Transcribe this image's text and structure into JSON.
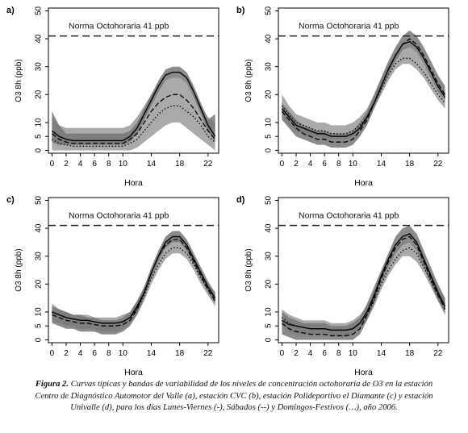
{
  "chart_data": [
    {
      "type": "line",
      "panel_label": "a)",
      "reference_label": "Norma Octohoraria 41 ppb",
      "reference_value": 41,
      "xlabel": "Hora",
      "ylabel": "O3 8h (ppb)",
      "x": [
        0,
        1,
        2,
        3,
        4,
        5,
        6,
        7,
        8,
        9,
        10,
        11,
        12,
        13,
        14,
        15,
        16,
        17,
        18,
        19,
        20,
        21,
        22,
        23
      ],
      "xticks": [
        0,
        2,
        4,
        6,
        8,
        10,
        14,
        18,
        22
      ],
      "yticks": [
        0,
        5,
        10,
        20,
        30,
        40,
        50
      ],
      "xlim": [
        -0.5,
        23.5
      ],
      "ylim": [
        -1,
        51
      ],
      "series": [
        {
          "style": "solid",
          "values": [
            7,
            5,
            4,
            3.5,
            3.5,
            3.5,
            3.5,
            3.5,
            3.5,
            3.5,
            3.5,
            5,
            8,
            13,
            18,
            23,
            27,
            28,
            28,
            26,
            21,
            15,
            9,
            5
          ]
        },
        {
          "style": "dashed",
          "values": [
            6,
            4,
            3,
            2.5,
            2.5,
            2.5,
            2.5,
            2.5,
            2.5,
            2.5,
            2.5,
            4,
            6,
            10,
            14,
            17,
            19,
            20,
            20,
            18,
            15,
            11,
            7,
            4
          ]
        },
        {
          "style": "dotted",
          "values": [
            4,
            2.5,
            2,
            1.5,
            1.5,
            1.5,
            1.5,
            1.5,
            1.5,
            1.5,
            1.5,
            2.5,
            4,
            7,
            10,
            13,
            15,
            16,
            16,
            14,
            12,
            9,
            5,
            3
          ]
        }
      ],
      "bands": [
        {
          "fill": "#aaaaaa",
          "lower": [
            0,
            0,
            0,
            0,
            0,
            0,
            0,
            0,
            0,
            0,
            0,
            0,
            1,
            3,
            5,
            7,
            9,
            10,
            10,
            8,
            6,
            4,
            2,
            0
          ],
          "upper": [
            12,
            9,
            8,
            8,
            8,
            8,
            8,
            8,
            8,
            8,
            8,
            9,
            12,
            16,
            20,
            23,
            25,
            26,
            26,
            24,
            20,
            16,
            12,
            10
          ]
        },
        {
          "fill": "#777777",
          "lower": [
            3,
            2,
            2,
            2,
            2,
            2,
            2,
            2,
            2,
            2,
            2,
            3,
            6,
            11,
            16,
            21,
            25,
            26,
            26,
            24,
            19,
            13,
            7,
            3
          ],
          "upper": [
            14,
            9,
            6,
            6,
            6,
            6,
            6,
            6,
            6,
            6,
            6,
            7,
            10,
            15,
            20,
            25,
            29,
            30,
            30,
            28,
            23,
            17,
            11,
            13
          ]
        }
      ]
    },
    {
      "type": "line",
      "panel_label": "b)",
      "reference_label": "Norma Octohoraria 41 ppb",
      "reference_value": 41,
      "xlabel": "Hora",
      "ylabel": "O3 8h (ppb)",
      "x": [
        0,
        1,
        2,
        3,
        4,
        5,
        6,
        7,
        8,
        9,
        10,
        11,
        12,
        13,
        14,
        15,
        16,
        17,
        18,
        19,
        20,
        21,
        22,
        23
      ],
      "xticks": [
        0,
        2,
        4,
        6,
        8,
        10,
        14,
        18,
        22
      ],
      "yticks": [
        0,
        5,
        10,
        20,
        30,
        40,
        50
      ],
      "xlim": [
        -0.5,
        23.5
      ],
      "ylim": [
        -1,
        51
      ],
      "series": [
        {
          "style": "solid",
          "values": [
            15,
            12,
            9,
            8,
            7,
            6,
            6,
            5,
            5,
            5,
            6,
            8,
            12,
            17,
            23,
            29,
            34,
            38,
            39,
            37,
            33,
            28,
            23,
            19
          ]
        },
        {
          "style": "dashed",
          "values": [
            14,
            11,
            8,
            6,
            5,
            4,
            4,
            3,
            3,
            3,
            4,
            7,
            11,
            17,
            23,
            29,
            34,
            38,
            40,
            38,
            34,
            29,
            24,
            20
          ]
        },
        {
          "style": "dotted",
          "values": [
            16,
            13,
            10,
            9,
            8,
            7,
            7,
            6,
            6,
            6,
            7,
            9,
            12,
            17,
            22,
            27,
            31,
            33,
            33,
            31,
            28,
            24,
            20,
            17
          ]
        }
      ],
      "bands": [
        {
          "fill": "#aaaaaa",
          "lower": [
            12,
            9,
            7,
            6,
            5,
            5,
            4,
            4,
            4,
            4,
            5,
            7,
            10,
            15,
            20,
            25,
            29,
            31,
            31,
            29,
            26,
            22,
            18,
            15
          ],
          "upper": [
            20,
            16,
            13,
            12,
            11,
            10,
            10,
            9,
            9,
            9,
            10,
            12,
            15,
            20,
            26,
            31,
            35,
            37,
            37,
            35,
            31,
            27,
            22,
            20
          ]
        },
        {
          "fill": "#777777",
          "lower": [
            11,
            8,
            5,
            4,
            3,
            2,
            2,
            1,
            1,
            1,
            2,
            5,
            9,
            15,
            21,
            27,
            32,
            36,
            37,
            35,
            31,
            26,
            21,
            18
          ],
          "upper": [
            17,
            14,
            11,
            9,
            8,
            7,
            7,
            6,
            6,
            6,
            7,
            10,
            14,
            20,
            26,
            32,
            37,
            41,
            43,
            41,
            37,
            32,
            27,
            23
          ]
        }
      ]
    },
    {
      "type": "line",
      "panel_label": "c)",
      "reference_label": "Norma Octohoraria 41 ppb",
      "reference_value": 41,
      "xlabel": "Hora",
      "ylabel": "O3 8h (ppb)",
      "x": [
        0,
        1,
        2,
        3,
        4,
        5,
        6,
        7,
        8,
        9,
        10,
        11,
        12,
        13,
        14,
        15,
        16,
        17,
        18,
        19,
        20,
        21,
        22,
        23
      ],
      "xticks": [
        0,
        2,
        4,
        6,
        8,
        10,
        14,
        18,
        22
      ],
      "yticks": [
        0,
        5,
        10,
        20,
        30,
        40,
        50
      ],
      "xlim": [
        -0.5,
        23.5
      ],
      "ylim": [
        -1,
        51
      ],
      "series": [
        {
          "style": "solid",
          "values": [
            10,
            9,
            8,
            7.5,
            7,
            7,
            6.5,
            6,
            6,
            6,
            6.5,
            8,
            12,
            17,
            24,
            30,
            35,
            37,
            37,
            34,
            29,
            24,
            19,
            15
          ]
        },
        {
          "style": "dashed",
          "values": [
            9,
            8,
            7,
            6.5,
            6,
            6,
            5.5,
            5,
            5,
            5,
            5.5,
            7,
            11,
            17,
            24,
            30,
            34,
            36,
            36,
            33,
            28,
            23,
            18,
            14
          ]
        },
        {
          "style": "dotted",
          "values": [
            10,
            9,
            8,
            7.5,
            7,
            7,
            6.5,
            6,
            6,
            6,
            6.5,
            8,
            11,
            16,
            22,
            27,
            31,
            33,
            33,
            31,
            27,
            22,
            18,
            15
          ]
        }
      ],
      "bands": [
        {
          "fill": "#aaaaaa",
          "lower": [
            7,
            6,
            5,
            5,
            4,
            4,
            4,
            3,
            3,
            3,
            4,
            6,
            9,
            14,
            20,
            25,
            29,
            31,
            31,
            29,
            25,
            20,
            16,
            12
          ],
          "upper": [
            13,
            11,
            10,
            9,
            9,
            9,
            8,
            8,
            8,
            8,
            9,
            10,
            14,
            19,
            25,
            30,
            34,
            36,
            36,
            34,
            30,
            25,
            20,
            17
          ]
        },
        {
          "fill": "#777777",
          "lower": [
            6,
            5,
            4,
            4,
            3,
            3,
            3,
            2,
            2,
            2,
            3,
            5,
            9,
            15,
            22,
            28,
            33,
            35,
            35,
            32,
            27,
            22,
            17,
            13
          ],
          "upper": [
            12,
            11,
            10,
            9,
            9,
            8,
            8,
            7,
            7,
            7,
            8,
            10,
            14,
            19,
            26,
            32,
            37,
            39,
            39,
            36,
            31,
            26,
            21,
            17
          ]
        }
      ]
    },
    {
      "type": "line",
      "panel_label": "d)",
      "reference_label": "Norma Octohoraria 41 ppb",
      "reference_value": 41,
      "xlabel": "Hora",
      "ylabel": "O3 8h (ppb)",
      "x": [
        0,
        1,
        2,
        3,
        4,
        5,
        6,
        7,
        8,
        9,
        10,
        11,
        12,
        13,
        14,
        15,
        16,
        17,
        18,
        19,
        20,
        21,
        22,
        23
      ],
      "xticks": [
        0,
        2,
        4,
        6,
        8,
        10,
        14,
        18,
        22
      ],
      "yticks": [
        0,
        5,
        10,
        20,
        30,
        40,
        50
      ],
      "xlim": [
        -0.5,
        23.5
      ],
      "ylim": [
        -1,
        51
      ],
      "series": [
        {
          "style": "solid",
          "values": [
            7,
            5.5,
            5,
            4.5,
            4,
            4,
            4,
            3.5,
            3.5,
            3.5,
            4,
            6,
            10,
            16,
            23,
            29,
            34,
            37,
            38,
            35,
            29,
            23,
            17,
            12
          ]
        },
        {
          "style": "dashed",
          "values": [
            6,
            4,
            3,
            2.5,
            2,
            2,
            2,
            1.5,
            1.5,
            1.5,
            2,
            4,
            9,
            15,
            22,
            28,
            33,
            36,
            37,
            34,
            28,
            22,
            16,
            11
          ]
        },
        {
          "style": "dotted",
          "values": [
            8,
            6,
            5,
            4.5,
            4,
            4,
            4,
            3.5,
            3.5,
            3.5,
            4,
            6,
            9,
            14,
            20,
            25,
            29,
            32,
            33,
            31,
            26,
            21,
            16,
            12
          ]
        }
      ],
      "bands": [
        {
          "fill": "#aaaaaa",
          "lower": [
            5,
            3,
            2,
            2,
            2,
            2,
            2,
            1,
            1,
            1,
            2,
            4,
            7,
            12,
            18,
            23,
            27,
            30,
            30,
            28,
            24,
            19,
            14,
            10
          ],
          "upper": [
            11,
            9,
            8,
            7,
            7,
            7,
            7,
            6,
            6,
            6,
            7,
            9,
            12,
            17,
            23,
            28,
            32,
            35,
            35,
            33,
            29,
            24,
            19,
            15
          ]
        },
        {
          "fill": "#777777",
          "lower": [
            2,
            1,
            0,
            0,
            0,
            0,
            0,
            0,
            0,
            0,
            0,
            2,
            7,
            13,
            20,
            26,
            31,
            34,
            35,
            32,
            26,
            20,
            14,
            9
          ],
          "upper": [
            10,
            8,
            7,
            6,
            6,
            6,
            6,
            5,
            5,
            5,
            6,
            8,
            13,
            19,
            25,
            31,
            37,
            40,
            41,
            38,
            32,
            26,
            20,
            15
          ]
        }
      ]
    }
  ],
  "caption": {
    "lead": "Figura 2.",
    "text": "Curvas típicas y bandas de variabilidad de los niveles de concentración octohoraria de O3 en la estación Centro de Diagnóstico Automotor del Valle (a), estación CVC (b), estación Polideportivo el Diamante (c) y estación Univalle (d), para los días Lunes-Viernes (-), Sábados (--) y Domingos-Festivos (…),  año 2006."
  }
}
